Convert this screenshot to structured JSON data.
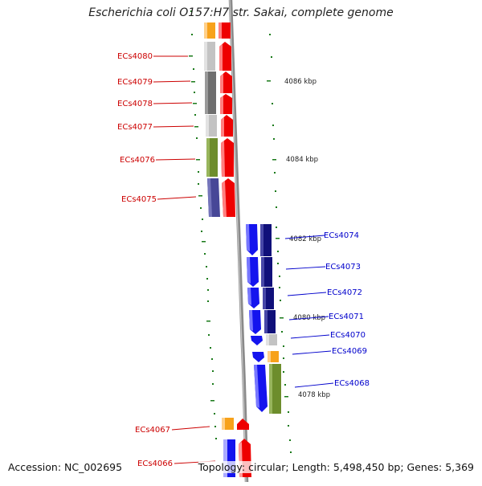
{
  "title": "Escherichia coli O157:H7 str. Sakai, complete genome",
  "accession": "Accession: NC_002695",
  "topology": "Topology: circular; Length: 5,498,450 bp; Genes: 5,369",
  "colors": {
    "reverse_label": "#cc0000",
    "forward_label": "#0000cc",
    "tick": "#1a7a1a",
    "backbone": "#8a8a8a"
  },
  "kbp_labels": [
    "4086 kbp",
    "4084 kbp",
    "4082 kbp",
    "4080 kbp",
    "4078 kbp"
  ],
  "reverse_genes": [
    {
      "label": "ECs4080"
    },
    {
      "label": "ECs4079"
    },
    {
      "label": "ECs4078"
    },
    {
      "label": "ECs4077"
    },
    {
      "label": "ECs4076"
    },
    {
      "label": "ECs4075"
    },
    {
      "label": "ECs4067"
    },
    {
      "label": "ECs4066"
    }
  ],
  "forward_genes": [
    {
      "label": "ECs4074"
    },
    {
      "label": "ECs4073"
    },
    {
      "label": "ECs4072"
    },
    {
      "label": "ECs4071"
    },
    {
      "label": "ECs4070"
    },
    {
      "label": "ECs4069"
    },
    {
      "label": "ECs4068"
    }
  ]
}
